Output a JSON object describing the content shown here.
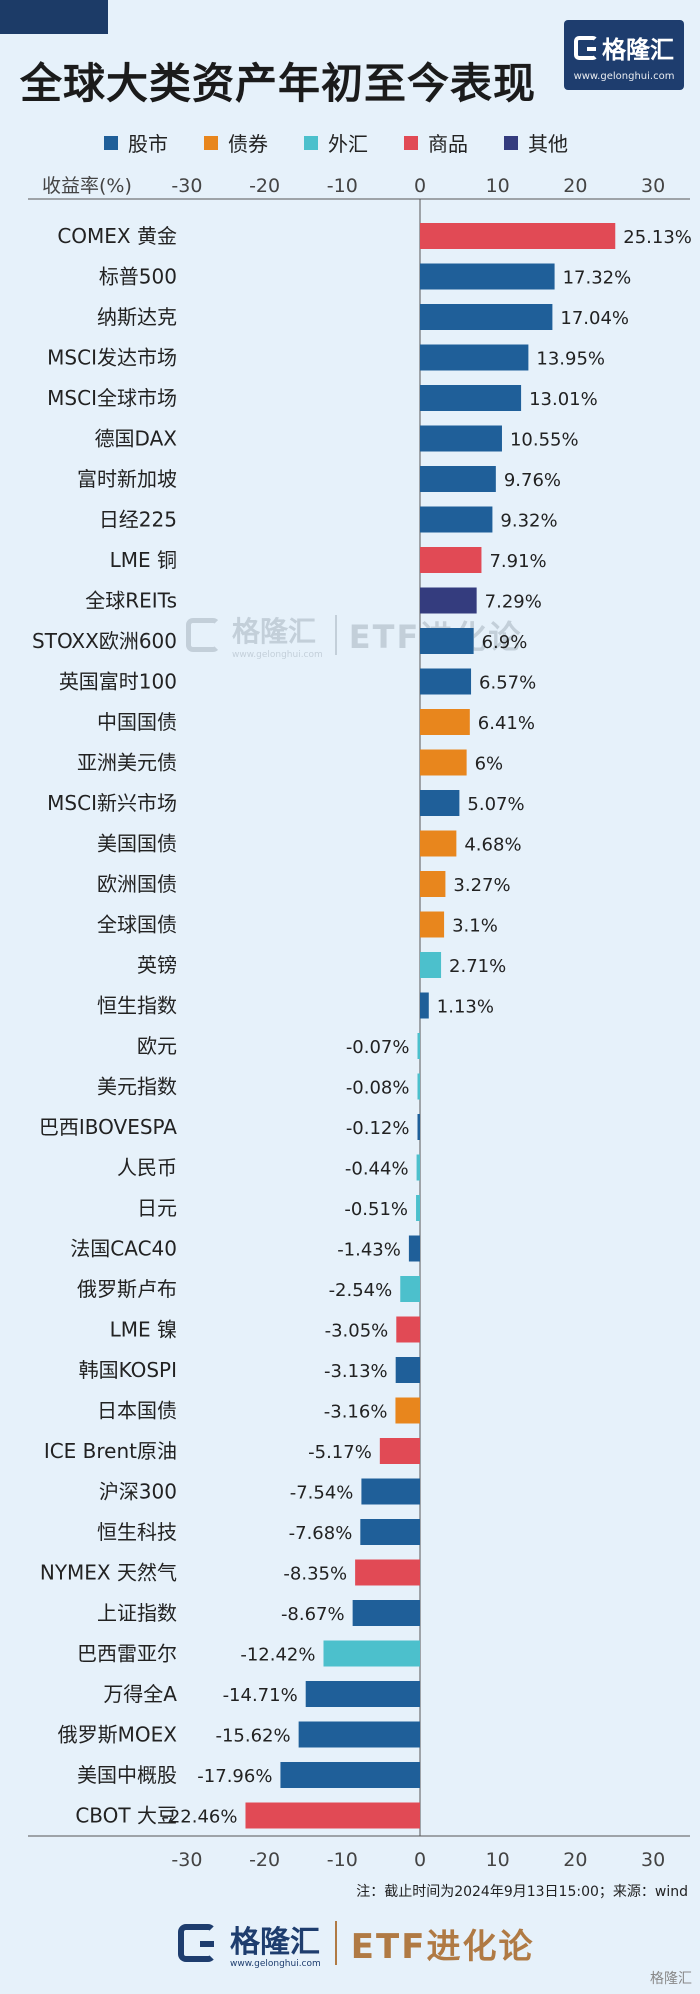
{
  "header": {
    "title": "全球大类资产年初至今表现"
  },
  "logo": {
    "brand": "格隆汇",
    "url": "www.gelonghui.com"
  },
  "legend": [
    {
      "label": "股市",
      "color": "#1f5f99"
    },
    {
      "label": "债券",
      "color": "#e8861d"
    },
    {
      "label": "外汇",
      "color": "#4cc0cc"
    },
    {
      "label": "商品",
      "color": "#e14a55"
    },
    {
      "label": "其他",
      "color": "#343c7e"
    }
  ],
  "chart_data": {
    "type": "bar",
    "orientation": "horizontal",
    "ylabel": "收益率(%)",
    "xlim": [
      -30,
      30
    ],
    "ticks": [
      -30,
      -20,
      -10,
      0,
      10,
      20,
      30
    ],
    "grid": false,
    "categories": [
      "COMEX 黄金",
      "标普500",
      "纳斯达克",
      "MSCI发达市场",
      "MSCI全球市场",
      "德国DAX",
      "富时新加坡",
      "日经225",
      "LME 铜",
      "全球REITs",
      "STOXX欧洲600",
      "英国富时100",
      "中国国债",
      "亚洲美元债",
      "MSCI新兴市场",
      "美国国债",
      "欧洲国债",
      "全球国债",
      "英镑",
      "恒生指数",
      "欧元",
      "美元指数",
      "巴西IBOVESPA",
      "人民币",
      "日元",
      "法国CAC40",
      "俄罗斯卢布",
      "LME 镍",
      "韩国KOSPI",
      "日本国债",
      "ICE Brent原油",
      "沪深300",
      "恒生科技",
      "NYMEX 天然气",
      "上证指数",
      "巴西雷亚尔",
      "万得全A",
      "俄罗斯MOEX",
      "美国中概股",
      "CBOT 大豆"
    ],
    "values": [
      25.13,
      17.32,
      17.04,
      13.95,
      13.01,
      10.55,
      9.76,
      9.32,
      7.91,
      7.29,
      6.9,
      6.57,
      6.41,
      6,
      5.07,
      4.68,
      3.27,
      3.1,
      2.71,
      1.13,
      -0.07,
      -0.08,
      -0.12,
      -0.44,
      -0.51,
      -1.43,
      -2.54,
      -3.05,
      -3.13,
      -3.16,
      -5.17,
      -7.54,
      -7.68,
      -8.35,
      -8.67,
      -12.42,
      -14.71,
      -15.62,
      -17.96,
      -22.46
    ],
    "value_labels": [
      "25.13%",
      "17.32%",
      "17.04%",
      "13.95%",
      "13.01%",
      "10.55%",
      "9.76%",
      "9.32%",
      "7.91%",
      "7.29%",
      "6.9%",
      "6.57%",
      "6.41%",
      "6%",
      "5.07%",
      "4.68%",
      "3.27%",
      "3.1%",
      "2.71%",
      "1.13%",
      "-0.07%",
      "-0.08%",
      "-0.12%",
      "-0.44%",
      "-0.51%",
      "-1.43%",
      "-2.54%",
      "-3.05%",
      "-3.13%",
      "-3.16%",
      "-5.17%",
      "-7.54%",
      "-7.68%",
      "-8.35%",
      "-8.67%",
      "-12.42%",
      "-14.71%",
      "-15.62%",
      "-17.96%",
      "-22.46%"
    ],
    "groups": [
      "商品",
      "股市",
      "股市",
      "股市",
      "股市",
      "股市",
      "股市",
      "股市",
      "商品",
      "其他",
      "股市",
      "股市",
      "债券",
      "债券",
      "股市",
      "债券",
      "债券",
      "债券",
      "外汇",
      "股市",
      "外汇",
      "外汇",
      "股市",
      "外汇",
      "外汇",
      "股市",
      "外汇",
      "商品",
      "股市",
      "债券",
      "商品",
      "股市",
      "股市",
      "商品",
      "股市",
      "外汇",
      "股市",
      "股市",
      "股市",
      "商品"
    ]
  },
  "footnote": "注：截止时间为2024年9月13日15:00；来源：wind",
  "footer": {
    "brand": "格隆汇",
    "url": "www.gelonghui.com",
    "etf": "ETF进化论"
  },
  "watermark": {
    "brand": "格隆汇",
    "url": "www.gelonghui.com",
    "etf": "ETF进化论"
  },
  "corner_mark": "格隆汇"
}
